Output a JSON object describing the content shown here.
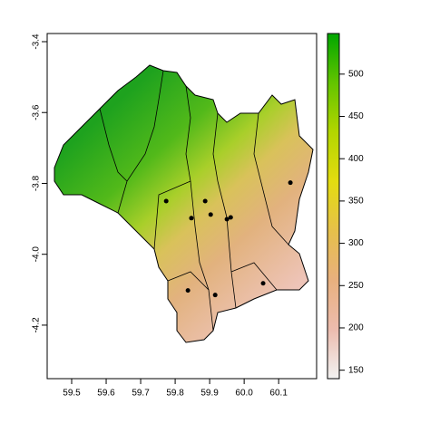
{
  "chart_data": {
    "type": "scatter",
    "x": [
      59.774,
      59.887,
      59.847,
      59.903,
      59.95,
      59.961,
      60.134,
      59.837,
      59.916,
      60.055
    ],
    "y": [
      -3.85,
      -3.85,
      -3.898,
      -3.888,
      -3.901,
      -3.896,
      -3.798,
      -4.102,
      -4.115,
      -4.082
    ],
    "color": "#000000",
    "xlim": [
      59.429,
      60.21
    ],
    "xticks": [
      59.5,
      59.6,
      59.7,
      59.8,
      59.9,
      {
        "value": 60,
        "label": "60.0"
      },
      60.1
    ],
    "ylim": [
      -4.351,
      -3.377
    ],
    "yticks": [
      -3.4,
      -3.6,
      -3.8,
      {
        "value": -4,
        "label": "-4.0"
      },
      -4.2
    ],
    "colorbar": {
      "zlim": [
        140,
        548
      ],
      "ticks": [
        150,
        200,
        250,
        300,
        350,
        400,
        450,
        500
      ],
      "colors": [
        "#f2f2f2",
        "#ecbcae",
        "#e8b07e",
        "#e6c04a",
        "#e3dc10",
        "#b3d600",
        "#63c400",
        "#00a600"
      ]
    }
  }
}
